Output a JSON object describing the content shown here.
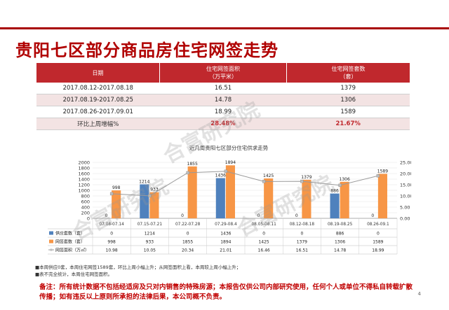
{
  "title": "贵阳七区部分商品房住宅网签走势",
  "table": {
    "headers": [
      "日期",
      "住宅网签面积\n（万平米）",
      "住宅网签套数\n（套）"
    ],
    "rows": [
      [
        "2017.08.12-2017.08.18",
        "16.51",
        "1379"
      ],
      [
        "2017.08.19-2017.08.25",
        "14.78",
        "1306"
      ],
      [
        "2017.08.26-2017.09.01",
        "18.99",
        "1589"
      ]
    ],
    "summary": [
      "环比上周增幅%",
      "28.48%",
      "21.67%"
    ]
  },
  "watermark": "合富研究院",
  "chart_data": {
    "type": "bar",
    "title": "近几周贵阳七区部分住宅供求走势",
    "categories": [
      "07.08-07.14",
      "07.15-07.21",
      "07.22-07.28",
      "07.29-08.4",
      "08.05-08.11",
      "08.12-08.18",
      "08.19-08.25",
      "08.26-09.1"
    ],
    "series": [
      {
        "name": "供应套数（套）",
        "values": [
          0,
          1214,
          0,
          1436,
          0,
          0,
          886,
          0
        ],
        "color": "#4f81bd",
        "axis": "left",
        "kind": "bar"
      },
      {
        "name": "网签套数（套）",
        "values": [
          998,
          933,
          1855,
          1894,
          1425,
          1379,
          1306,
          1589
        ],
        "color": "#f79646",
        "axis": "left",
        "kind": "bar"
      },
      {
        "name": "网签面积（万㎡）",
        "values": [
          10.98,
          10.05,
          20.34,
          21.01,
          16.46,
          16.51,
          14.78,
          18.99
        ],
        "color": "#a6a6a6",
        "axis": "right",
        "kind": "line"
      }
    ],
    "left_ticks": [
      "0",
      "200",
      "400",
      "600",
      "800",
      "1000",
      "1200",
      "1400",
      "1600",
      "1800",
      "2000"
    ],
    "right_ticks": [
      "0.00",
      "5.00",
      "10.00",
      "15.00",
      "20.00",
      "25.00"
    ],
    "ylim_left": [
      0,
      2000
    ],
    "ylim_right": [
      0,
      25
    ],
    "grid": true
  },
  "footnotes": [
    "■本周供应0套，本周住宅网签1589套，环比上周小幅上升；从网签面积上看，本周较上周小幅上升；",
    "■表不完全统计，本周住宅网签面积。"
  ],
  "note": "备注：所有统计数据不包括经适房及只对内销售的特殊房源；本报告仅供公司内部研究使用，任何个人或单位不得私自转载扩散传播；如有违反以上原则所承担的法律后果，本公司概不负责。",
  "page_number": "4"
}
